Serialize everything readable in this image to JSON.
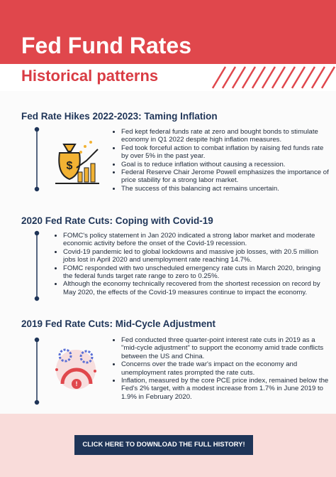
{
  "header": {
    "title": "Fed Fund Rates",
    "subtitle": "Historical patterns"
  },
  "sections": [
    {
      "heading": "Fed Rate Hikes 2022-2023: Taming Inflation",
      "bullets": [
        "Fed kept federal funds rate at zero and bought bonds to stimulate economy in Q1 2022 despite high inflation measures.",
        "Fed took forceful action to combat inflation by raising fed funds rate by over 5% in the past year.",
        "Goal is to reduce inflation without causing a recession.",
        "Federal Reserve Chair Jerome Powell emphasizes the importance of price stability for a strong labor market.",
        "The success of this balancing act remains uncertain."
      ]
    },
    {
      "heading": "2020 Fed Rate Cuts: Coping with Covid-19",
      "bullets": [
        "FOMC's policy statement in Jan 2020 indicated a strong labor market and moderate economic activity before the onset of the Covid-19 recession.",
        "Covid-19 pandemic led to global lockdowns and massive job losses, with 20.5 million jobs lost in April 2020 and unemployment rate reaching 14.7%.",
        "FOMC responded with two unscheduled emergency rate cuts in March 2020, bringing the federal funds target rate range to zero to 0.25%.",
        "Although the economy technically recovered from the shortest recession on record by May 2020, the effects of the Covid-19 measures continue to impact the economy."
      ]
    },
    {
      "heading": "2019 Fed Rate Cuts: Mid-Cycle Adjustment",
      "bullets": [
        "Fed conducted three quarter-point interest rate cuts in 2019 as a \"mid-cycle adjustment\" to support the economy amid trade conflicts between the US and China.",
        "Concerns over the trade war's impact on the economy and unemployment rates prompted the rate cuts.",
        "Inflation, measured by the core PCE price index, remained below the Fed's 2% target, with a modest increase from 1.7% in June 2019 to 1.9% in February 2020."
      ]
    }
  ],
  "button": {
    "label": "CLICK HERE TO DOWNLOAD THE FULL HISTORY!"
  }
}
